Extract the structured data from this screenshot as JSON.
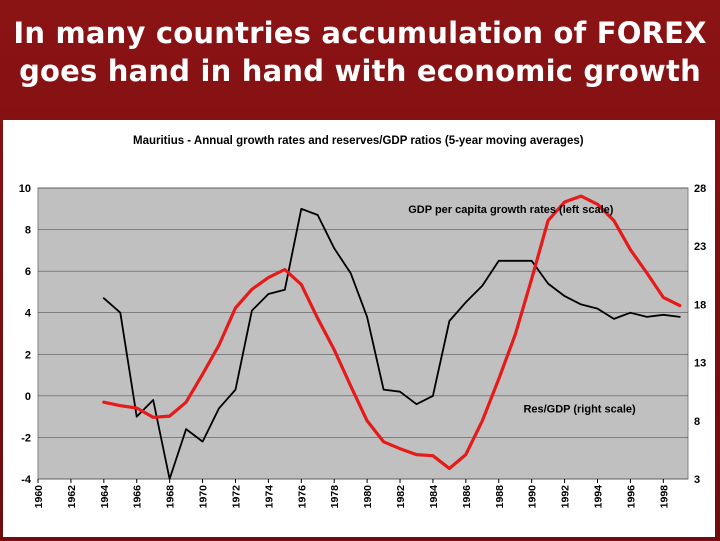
{
  "slide": {
    "headline_line1": "In many countries accumulation of FOREX",
    "headline_line2": "goes hand in hand with economic growth"
  },
  "chart_data": {
    "type": "line",
    "title": "Mauritius  - Annual growth rates and reserves/GDP ratios (5-year moving averages)",
    "x_ticks": [
      "1960",
      "1962",
      "1964",
      "1966",
      "1968",
      "1970",
      "1972",
      "1974",
      "1976",
      "1978",
      "1980",
      "1982",
      "1984",
      "1986",
      "1988",
      "1990",
      "1992",
      "1994",
      "1996",
      "1998"
    ],
    "xlim": [
      1960,
      1999.5
    ],
    "y_left": {
      "lim": [
        -4,
        10
      ],
      "ticks": [
        "10",
        "8",
        "6",
        "4",
        "2",
        "0",
        "-2",
        "-4"
      ]
    },
    "y_right": {
      "lim": [
        3,
        28
      ],
      "ticks": [
        "28",
        "23",
        "18",
        "13",
        "8",
        "3"
      ]
    },
    "grid": "horizontal",
    "series": [
      {
        "name": "GDP per capita growth rates (left scale)",
        "axis": "left",
        "color": "#000000",
        "x": [
          1964,
          1965,
          1966,
          1967,
          1968,
          1969,
          1970,
          1971,
          1972,
          1973,
          1974,
          1975,
          1976,
          1977,
          1978,
          1979,
          1980,
          1981,
          1982,
          1983,
          1984,
          1985,
          1986,
          1987,
          1988,
          1989,
          1990,
          1991,
          1992,
          1993,
          1994,
          1995,
          1996,
          1997,
          1998,
          1999
        ],
        "y": [
          4.7,
          4.0,
          -1.0,
          -0.2,
          -4.0,
          -1.6,
          -2.2,
          -0.6,
          0.3,
          4.1,
          4.9,
          5.1,
          9.0,
          8.7,
          7.1,
          5.9,
          3.8,
          0.3,
          0.2,
          -0.4,
          0.0,
          3.6,
          4.5,
          5.3,
          6.5,
          6.5,
          6.5,
          5.4,
          4.8,
          4.4,
          4.2,
          3.7,
          4.0,
          3.8,
          3.9,
          3.8
        ]
      },
      {
        "name": "Res/GDP (right scale)",
        "axis": "right",
        "color": "#e51a1a",
        "x": [
          1964,
          1965,
          1966,
          1967,
          1968,
          1969,
          1970,
          1971,
          1972,
          1973,
          1974,
          1975,
          1976,
          1977,
          1978,
          1979,
          1980,
          1981,
          1982,
          1983,
          1984,
          1985,
          1986,
          1987,
          1988,
          1989,
          1990,
          1991,
          1992,
          1993,
          1994,
          1995,
          1996,
          1997,
          1998,
          1999
        ],
        "y": [
          9.6,
          9.3,
          9.1,
          8.3,
          8.4,
          9.6,
          12.0,
          14.5,
          17.7,
          19.3,
          20.3,
          21.0,
          19.7,
          16.8,
          14.1,
          11.0,
          8.0,
          6.2,
          5.6,
          5.1,
          5.0,
          3.9,
          5.1,
          8.0,
          11.6,
          15.4,
          20.2,
          25.2,
          26.8,
          27.3,
          26.6,
          25.2,
          22.7,
          20.7,
          18.6,
          17.9
        ]
      }
    ],
    "annotations": [
      {
        "text": "GDP per capita growth rates (left scale)",
        "x": 1982.5,
        "y_left": 8.8
      },
      {
        "text": "Res/GDP (right scale)",
        "x": 1989.5,
        "y_left": -0.8
      }
    ]
  }
}
